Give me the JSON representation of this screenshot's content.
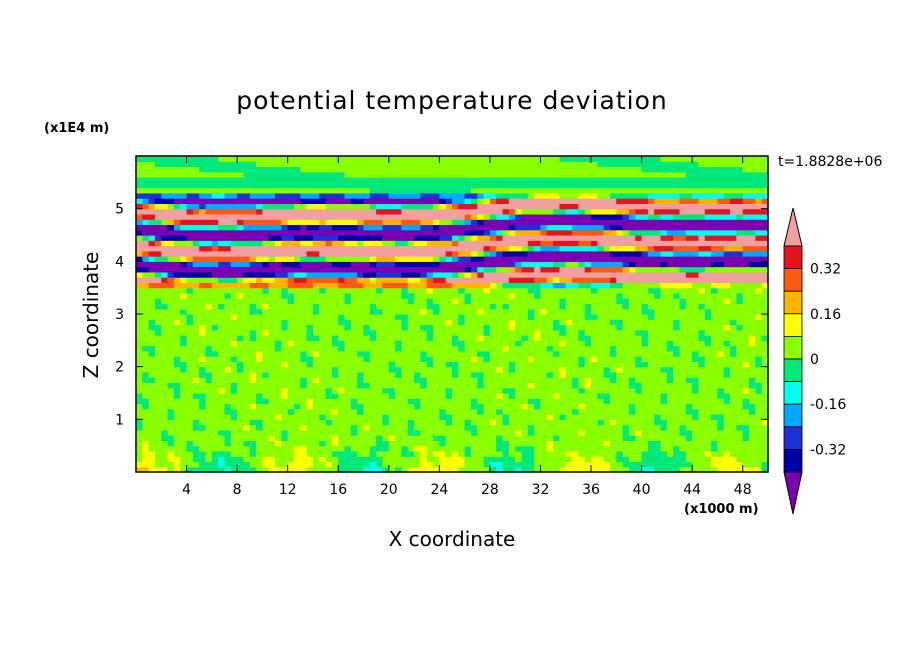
{
  "chart_data": {
    "type": "heatmap",
    "title": "potential temperature deviation",
    "time_label": "t=1.8828e+06",
    "xlabel": "X coordinate",
    "ylabel": "Z coordinate",
    "x_unit": "(x1000 m)",
    "z_unit": "(x1E4 m)",
    "xlim": [
      0,
      50
    ],
    "zlim": [
      0,
      6
    ],
    "x_ticks": [
      4,
      8,
      12,
      16,
      20,
      24,
      28,
      32,
      36,
      40,
      44,
      48
    ],
    "x_tick_labels": [
      "4",
      "8",
      "12",
      "16",
      "20",
      "24",
      "28",
      "32",
      "36",
      "40",
      "44",
      "48"
    ],
    "z_ticks": [
      1,
      2,
      3,
      4,
      5
    ],
    "z_tick_labels": [
      "1",
      "2",
      "3",
      "4",
      "5"
    ],
    "colorbar": {
      "levels": [
        -0.4,
        -0.32,
        -0.24,
        -0.16,
        -0.08,
        0,
        0.08,
        0.16,
        0.24,
        0.32,
        0.4
      ],
      "colors": [
        "#7b00b4",
        "#0000a8",
        "#2030d8",
        "#00a8ff",
        "#00ffee",
        "#00e87a",
        "#8aff00",
        "#ffff00",
        "#ffb400",
        "#ff5a14",
        "#e6141e",
        "#f0a0a0"
      ],
      "tick_values": [
        -0.32,
        -0.16,
        0,
        0.16,
        0.32
      ],
      "tick_labels": [
        "-0.32",
        "-0.16",
        "0",
        "0.16",
        "0.32"
      ],
      "extend": "both"
    },
    "bands": [
      {
        "z_range": [
          0,
          3.4
        ],
        "description": "small-scale mottled field, values near 0",
        "typical_value": 0.02
      },
      {
        "z_range": [
          3.4,
          4.9
        ],
        "description": "strong alternating layers",
        "min": -0.4,
        "max": 0.4
      },
      {
        "z_range": [
          4.9,
          5.3
        ],
        "description": "layered positive/negative",
        "min": -0.4,
        "max": 0.3
      },
      {
        "z_range": [
          5.3,
          6.0
        ],
        "description": "weak deviation",
        "typical_value": 0.0
      }
    ]
  }
}
